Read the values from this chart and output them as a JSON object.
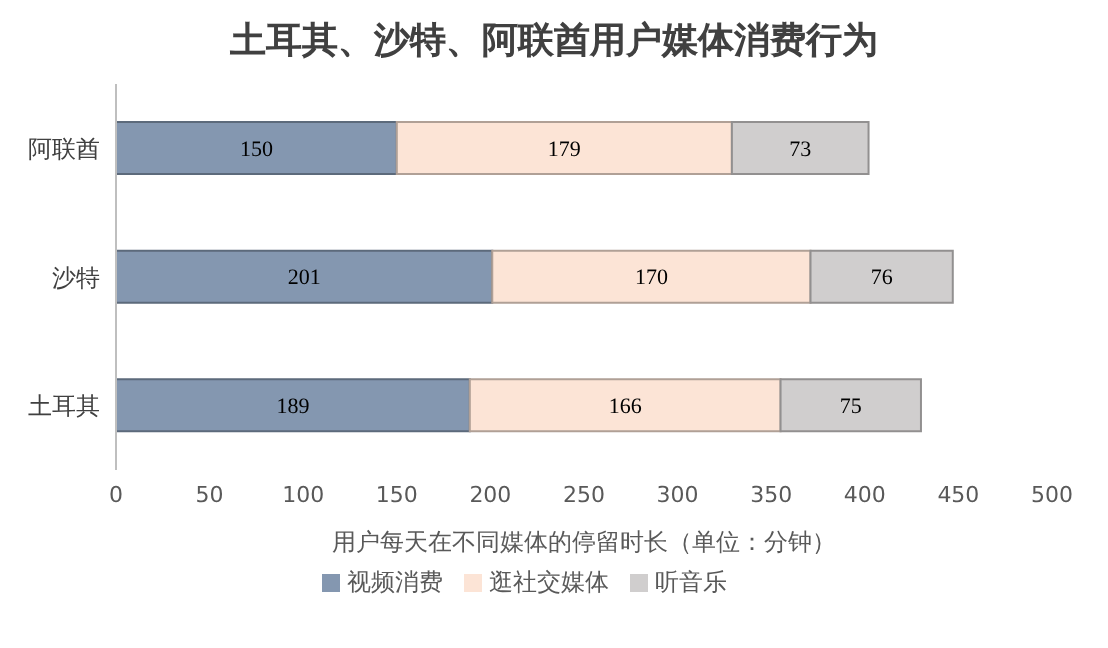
{
  "chart_data": {
    "type": "bar",
    "orientation": "horizontal",
    "stacked": true,
    "title": "土耳其、沙特、阿联酋用户媒体消费行为",
    "xlabel": "用户每天在不同媒体的停留时长（单位：分钟）",
    "categories": [
      "阿联酋",
      "沙特",
      "土耳其"
    ],
    "series": [
      {
        "name": "视频消费",
        "color": "#8497b0",
        "values": [
          150,
          201,
          189
        ]
      },
      {
        "name": "逛社交媒体",
        "color": "#fce4d6",
        "values": [
          179,
          170,
          166
        ]
      },
      {
        "name": "听音乐",
        "color": "#d0cece",
        "values": [
          73,
          76,
          75
        ]
      }
    ],
    "xlim": [
      0,
      500
    ],
    "xticks": [
      0,
      50,
      100,
      150,
      200,
      250,
      300,
      350,
      400,
      450,
      500
    ],
    "grid": false,
    "legend": "bottom",
    "data_labels": true
  }
}
